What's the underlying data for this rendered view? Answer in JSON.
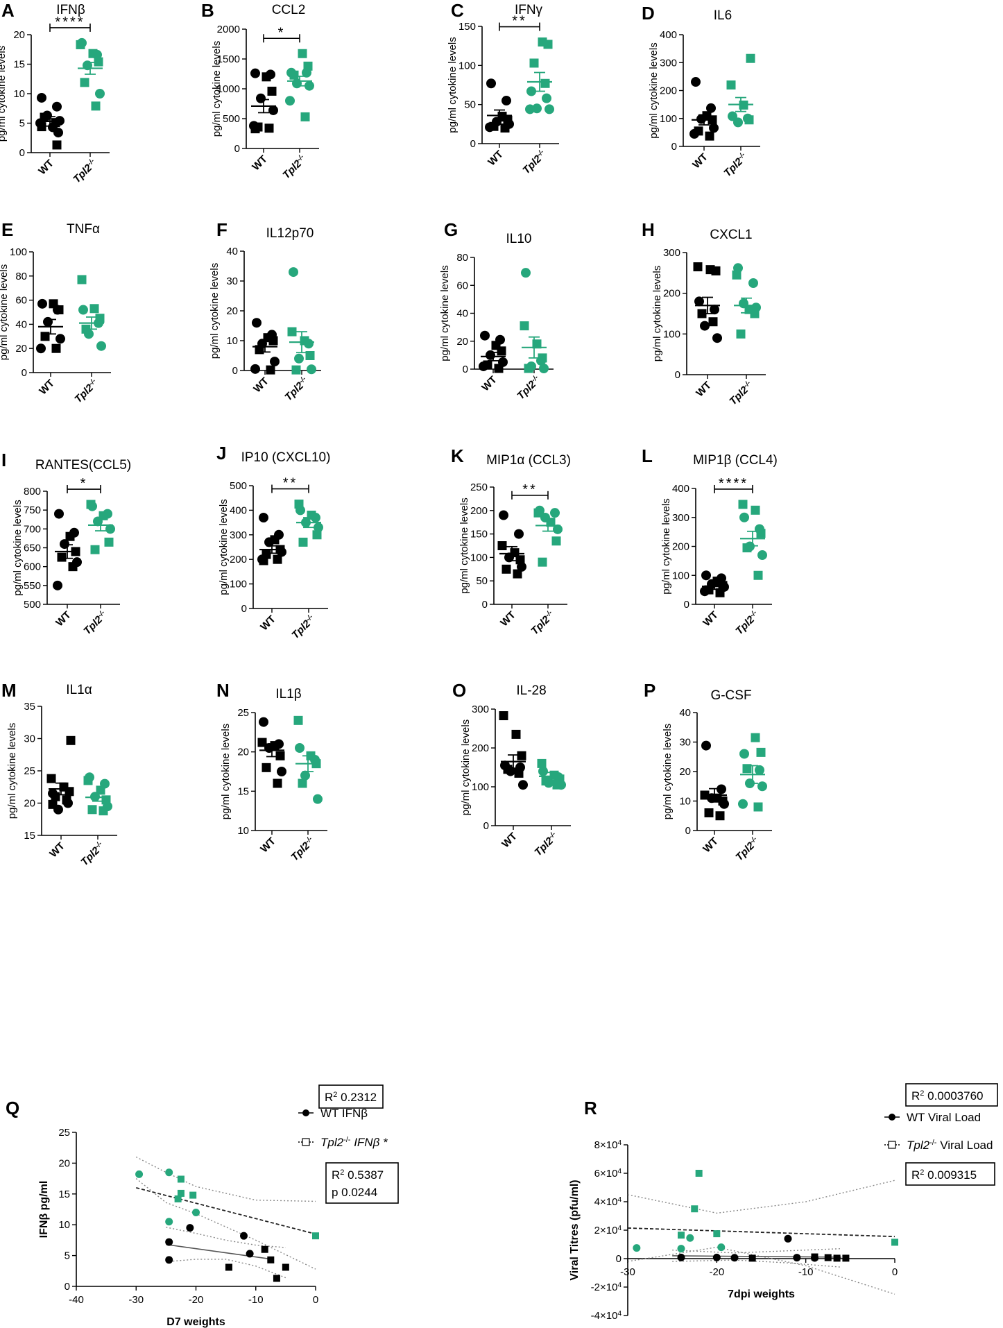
{
  "colors": {
    "wt": "#000000",
    "ko": "#26a77c",
    "axis": "#000000",
    "ci": "#888888"
  },
  "common": {
    "ylabel": "pg/ml cytokine levels",
    "categories": [
      "WT",
      "Tpl2",
      "-/-"
    ]
  },
  "chart_data": [
    {
      "type": "scatter",
      "id": "A",
      "label": "A",
      "title": "IFNβ",
      "ylim": [
        0,
        20
      ],
      "yticks": [
        0,
        5,
        10,
        15,
        20
      ],
      "sig": "****",
      "wt": {
        "mean": 5.3,
        "sem": 0.8,
        "circles": [
          9.3,
          7.8,
          6.3,
          5.4,
          5.0,
          4.3,
          3.4
        ],
        "squares": [
          6.0,
          5.1,
          4.4,
          1.3
        ]
      },
      "ko": {
        "mean": 14.3,
        "sem": 1.0,
        "circles": [
          18.6,
          16.6,
          14.8,
          10.0
        ],
        "squares": [
          18.3,
          16.8,
          15.4,
          11.9,
          7.9
        ]
      }
    },
    {
      "type": "scatter",
      "id": "B",
      "label": "B",
      "title": "CCL2",
      "ylim": [
        0,
        2000
      ],
      "yticks": [
        0,
        500,
        1000,
        1500,
        2000
      ],
      "sig": "*",
      "wt": {
        "mean": 710,
        "sem": 110,
        "circles": [
          1260,
          1240,
          840,
          640,
          380
        ],
        "squares": [
          1200,
          960,
          360,
          340,
          330
        ]
      },
      "ko": {
        "mean": 1130,
        "sem": 80,
        "circles": [
          1270,
          1270,
          1090,
          1050,
          800
        ],
        "squares": [
          1590,
          1380,
          1230,
          530
        ]
      }
    },
    {
      "type": "scatter",
      "id": "C",
      "label": "C",
      "title": "IFNγ",
      "ylim": [
        0,
        150
      ],
      "yticks": [
        0,
        50,
        100,
        150
      ],
      "sig": "**",
      "wt": {
        "mean": 36,
        "sem": 7,
        "circles": [
          77,
          55,
          28,
          25,
          21
        ],
        "squares": [
          35,
          30,
          22,
          20
        ]
      },
      "ko": {
        "mean": 79,
        "sem": 12,
        "circles": [
          67,
          58,
          45,
          44,
          44
        ],
        "squares": [
          130,
          127,
          103,
          77
        ]
      }
    },
    {
      "type": "scatter",
      "id": "D",
      "label": "D",
      "title": "IL6",
      "ylim": [
        0,
        400
      ],
      "yticks": [
        0,
        100,
        200,
        300,
        400
      ],
      "sig": "",
      "wt": {
        "mean": 95,
        "sem": 18,
        "circles": [
          231,
          137,
          98,
          66,
          45
        ],
        "squares": [
          110,
          95,
          55,
          37
        ]
      },
      "ko": {
        "mean": 150,
        "sem": 25,
        "circles": [
          108,
          100,
          86
        ],
        "squares": [
          315,
          220,
          148,
          95
        ]
      }
    },
    {
      "type": "scatter",
      "id": "E",
      "label": "E",
      "title": "TNFα",
      "ylim": [
        0,
        100
      ],
      "yticks": [
        0,
        20,
        40,
        60,
        80,
        100
      ],
      "sig": "",
      "wt": {
        "mean": 38,
        "sem": 6,
        "circles": [
          57,
          52,
          42,
          28,
          20
        ],
        "squares": [
          57,
          52,
          30,
          20
        ]
      },
      "ko": {
        "mean": 41,
        "sem": 5,
        "circles": [
          52,
          41,
          32,
          22
        ],
        "squares": [
          77,
          53,
          45,
          36
        ]
      }
    },
    {
      "type": "scatter",
      "id": "F",
      "label": "F",
      "title": "IL12p70",
      "ylim": [
        0,
        40
      ],
      "yticks": [
        0,
        10,
        20,
        30,
        40
      ],
      "sig": "",
      "wt": {
        "mean": 8.0,
        "sem": 1.8,
        "circles": [
          16,
          12,
          9,
          3,
          0.5
        ],
        "squares": [
          11,
          10,
          7,
          0.2
        ]
      },
      "ko": {
        "mean": 9.5,
        "sem": 3.5,
        "circles": [
          33,
          9,
          4,
          0.4
        ],
        "squares": [
          13,
          10,
          5,
          0.2
        ]
      }
    },
    {
      "type": "scatter",
      "id": "G",
      "label": "G",
      "title": "IL10",
      "ylim": [
        0,
        80
      ],
      "yticks": [
        0,
        20,
        40,
        60,
        80
      ],
      "sig": "",
      "wt": {
        "mean": 9,
        "sem": 3,
        "circles": [
          24,
          21,
          10,
          5,
          2
        ],
        "squares": [
          17,
          13,
          3,
          0.5
        ]
      },
      "ko": {
        "mean": 15.5,
        "sem": 7.5,
        "circles": [
          69,
          6,
          2,
          0.5
        ],
        "squares": [
          31,
          18,
          8,
          0.5
        ]
      }
    },
    {
      "type": "scatter",
      "id": "H",
      "label": "H",
      "title": "CXCL1",
      "ylim": [
        0,
        300
      ],
      "yticks": [
        0,
        100,
        200,
        300
      ],
      "sig": "",
      "wt": {
        "mean": 170,
        "sem": 20,
        "circles": [
          180,
          160,
          120,
          90
        ],
        "squares": [
          265,
          258,
          255,
          150,
          130
        ]
      },
      "ko": {
        "mean": 170,
        "sem": 18,
        "circles": [
          262,
          225,
          175,
          165
        ],
        "squares": [
          245,
          160,
          150,
          100
        ]
      }
    },
    {
      "type": "scatter",
      "id": "I",
      "label": "I",
      "title": "RANTES(CCL5)",
      "ylim": [
        500,
        800
      ],
      "yticks": [
        500,
        550,
        600,
        650,
        700,
        750,
        800
      ],
      "sig": "*",
      "wt": {
        "mean": 640,
        "sem": 18,
        "circles": [
          740,
          690,
          660,
          612,
          550
        ],
        "squares": [
          680,
          640,
          625,
          600
        ]
      },
      "ko": {
        "mean": 710,
        "sem": 15,
        "circles": [
          760,
          740,
          720,
          700
        ],
        "squares": [
          765,
          735,
          665,
          645
        ]
      }
    },
    {
      "type": "scatter",
      "id": "J",
      "label": "J",
      "title": "IP10 (CXCL10)",
      "ylim": [
        0,
        500
      ],
      "yticks": [
        0,
        100,
        200,
        300,
        400,
        500
      ],
      "sig": "**",
      "wt": {
        "mean": 240,
        "sem": 15,
        "circles": [
          370,
          300,
          270,
          230,
          200
        ],
        "squares": [
          280,
          240,
          220,
          200,
          195
        ]
      },
      "ko": {
        "mean": 350,
        "sem": 20,
        "circles": [
          400,
          370,
          350,
          330
        ],
        "squares": [
          425,
          380,
          300,
          270
        ]
      }
    },
    {
      "type": "scatter",
      "id": "K",
      "label": "K",
      "title": "MIP1α (CCL3)",
      "ylim": [
        0,
        250
      ],
      "yticks": [
        0,
        50,
        100,
        150,
        200,
        250
      ],
      "sig": "**",
      "wt": {
        "mean": 108,
        "sem": 15,
        "circles": [
          190,
          150,
          100,
          80
        ],
        "squares": [
          125,
          110,
          95,
          75,
          65
        ]
      },
      "ko": {
        "mean": 168,
        "sem": 12,
        "circles": [
          200,
          195,
          185,
          160
        ],
        "squares": [
          195,
          175,
          135,
          90
        ]
      }
    },
    {
      "type": "scatter",
      "id": "L",
      "label": "L",
      "title": "MIP1β (CCL4)",
      "ylim": [
        0,
        400
      ],
      "yticks": [
        0,
        100,
        200,
        300,
        400
      ],
      "sig": "****",
      "wt": {
        "mean": 62,
        "sem": 10,
        "circles": [
          100,
          90,
          70,
          60,
          45
        ],
        "squares": [
          80,
          65,
          50,
          40
        ]
      },
      "ko": {
        "mean": 227,
        "sem": 25,
        "circles": [
          300,
          260,
          200,
          170
        ],
        "squares": [
          345,
          325,
          245,
          195,
          100
        ]
      }
    },
    {
      "type": "scatter",
      "id": "M",
      "label": "M",
      "title": "IL1α",
      "ylim": [
        15,
        35
      ],
      "yticks": [
        15,
        20,
        25,
        30,
        35
      ],
      "sig": "",
      "wt": {
        "mean": 22.2,
        "sem": 0.9,
        "circles": [
          21.5,
          20,
          19
        ],
        "squares": [
          29.7,
          23.8,
          22.5,
          21.8,
          21,
          20.5,
          19.8
        ]
      },
      "ko": {
        "mean": 20.9,
        "sem": 0.6,
        "circles": [
          24,
          23,
          21,
          19.5
        ],
        "squares": [
          23.5,
          22,
          20.5,
          19,
          18.8
        ]
      }
    },
    {
      "type": "scatter",
      "id": "N",
      "label": "N",
      "title": "IL1β",
      "ylim": [
        10,
        25
      ],
      "yticks": [
        10,
        15,
        20,
        25
      ],
      "sig": "",
      "wt": {
        "mean": 20.2,
        "sem": 0.8,
        "circles": [
          23.8,
          21,
          20.5,
          17.5
        ],
        "squares": [
          21.2,
          20.8,
          19.5,
          18,
          16
        ]
      },
      "ko": {
        "mean": 18.5,
        "sem": 1.0,
        "circles": [
          20.5,
          19,
          17,
          14
        ],
        "squares": [
          24,
          19.5,
          18.5,
          16
        ]
      }
    },
    {
      "type": "scatter",
      "id": "O",
      "label": "O",
      "title": "IL-28",
      "ylim": [
        0,
        300
      ],
      "yticks": [
        0,
        100,
        200,
        300
      ],
      "sig": "",
      "wt": {
        "mean": 165,
        "sem": 17,
        "circles": [
          155,
          150,
          140,
          105
        ],
        "squares": [
          283,
          235,
          180,
          145,
          135
        ]
      },
      "ko": {
        "mean": 127,
        "sem": 10,
        "circles": [
          140,
          125,
          110,
          105
        ],
        "squares": [
          160,
          130,
          120,
          115,
          105
        ]
      }
    },
    {
      "type": "scatter",
      "id": "P",
      "label": "P",
      "title": "G-CSF",
      "ylim": [
        0,
        40
      ],
      "yticks": [
        0,
        10,
        20,
        30,
        40
      ],
      "sig": "",
      "wt": {
        "mean": 12,
        "sem": 2.2,
        "circles": [
          28.8,
          14,
          11,
          9
        ],
        "squares": [
          12,
          11,
          10,
          6,
          5
        ]
      },
      "ko": {
        "mean": 19,
        "sem": 3,
        "circles": [
          26,
          20.5,
          16,
          15,
          9
        ],
        "squares": [
          31.5,
          26.5,
          21,
          8
        ]
      }
    },
    {
      "type": "regression",
      "id": "Q",
      "label": "Q",
      "xlabel": "D7 weights",
      "ylabel": "IFNβ pg/ml",
      "xlim": [
        -40,
        0
      ],
      "ylim": [
        0,
        25
      ],
      "xticks": [
        -40,
        -30,
        -20,
        -10,
        0
      ],
      "yticks": [
        0,
        5,
        10,
        15,
        20,
        25
      ],
      "legend": [
        {
          "name": "WT IFNβ"
        },
        {
          "name": "Tpl2",
          "sup": "-/-",
          "suffix": " IFNβ *"
        }
      ],
      "r2_wt": {
        "label": "R",
        "sup": "2",
        "value": " 0.2312"
      },
      "r2_ko": {
        "label": "R",
        "sup": "2",
        "value": " 0.5387",
        "p": "p 0.0244"
      },
      "wt_circles": [
        [
          -24.5,
          7.2
        ],
        [
          -24.5,
          4.3
        ],
        [
          -21,
          9.5
        ],
        [
          -12,
          8.2
        ],
        [
          -11,
          5.3
        ]
      ],
      "wt_squares": [
        [
          -14.5,
          3.1
        ],
        [
          -8.5,
          6.0
        ],
        [
          -7.5,
          4.3
        ],
        [
          -6.5,
          1.3
        ],
        [
          -5,
          3.1
        ]
      ],
      "ko_circles": [
        [
          -29.5,
          18.2
        ],
        [
          -24.5,
          18.5
        ],
        [
          -24.5,
          10.5
        ],
        [
          -20,
          12.0
        ]
      ],
      "ko_squares": [
        [
          -22.5,
          17.4
        ],
        [
          -22.5,
          15.1
        ],
        [
          -23,
          14.2
        ],
        [
          -20.5,
          14.8
        ],
        [
          0,
          8.2
        ]
      ],
      "wt_line": [
        [
          -25,
          6.8
        ],
        [
          -8,
          4.5
        ]
      ],
      "ko_line": [
        [
          -30,
          16.0
        ],
        [
          0,
          8.5
        ]
      ],
      "wt_ci_upper": [
        [
          -25,
          9.6
        ],
        [
          -20,
          8.6
        ],
        [
          -15,
          7.5
        ],
        [
          -10,
          6.7
        ],
        [
          -5,
          6.3
        ]
      ],
      "wt_ci_lower": [
        [
          -25,
          4.0
        ],
        [
          -20,
          4.4
        ],
        [
          -15,
          4.4
        ],
        [
          -10,
          3.3
        ],
        [
          -5,
          1.4
        ]
      ],
      "ko_ci_upper": [
        [
          -30,
          21.0
        ],
        [
          -25,
          18.5
        ],
        [
          -20,
          16.2
        ],
        [
          -10,
          14.0
        ],
        [
          0,
          13.8
        ]
      ],
      "ko_ci_lower": [
        [
          -30,
          17.5
        ],
        [
          -25,
          13.6
        ],
        [
          -20,
          11.8
        ],
        [
          -10,
          7.5
        ],
        [
          0,
          2.8
        ]
      ]
    },
    {
      "type": "regression",
      "id": "R",
      "label": "R",
      "xlabel": "7dpi weights",
      "ylabel": "Viral Titres (pfu/ml)",
      "xlim": [
        -30,
        0
      ],
      "ylim": [
        -40000,
        80000
      ],
      "yticks": [
        -40000,
        -20000,
        0,
        20000,
        40000,
        60000,
        80000
      ],
      "ytick_labels": [
        {
          "m": "-4×10",
          "e": "4"
        },
        {
          "m": "-2×10",
          "e": "4"
        },
        {
          "m": "0",
          "e": ""
        },
        {
          "m": "2×10",
          "e": "4"
        },
        {
          "m": "4×10",
          "e": "4"
        },
        {
          "m": "6×10",
          "e": "4"
        },
        {
          "m": "8×10",
          "e": "4"
        }
      ],
      "xticks": [
        -30,
        -20,
        -10,
        0
      ],
      "legend": [
        {
          "name": "WT Viral Load"
        },
        {
          "name": "Tpl2",
          "sup": "-/-",
          "suffix": " Viral Load"
        }
      ],
      "r2_wt": {
        "label": "R",
        "sup": "2",
        "value": " 0.0003760"
      },
      "r2_ko": {
        "label": "R",
        "sup": "2",
        "value": " 0.009315"
      },
      "wt_circles": [
        [
          -24,
          800
        ],
        [
          -20,
          800
        ],
        [
          -18,
          600
        ],
        [
          -12,
          14000
        ],
        [
          -11,
          700
        ],
        [
          -9,
          500
        ]
      ],
      "wt_squares": [
        [
          -16,
          300
        ],
        [
          -9,
          1200
        ],
        [
          -7.5,
          700
        ],
        [
          -6.5,
          300
        ],
        [
          -5.5,
          300
        ]
      ],
      "ko_circles": [
        [
          -29,
          7500
        ],
        [
          -24,
          7000
        ],
        [
          -23,
          14500
        ],
        [
          -19.5,
          8000
        ]
      ],
      "ko_squares": [
        [
          -22,
          60000
        ],
        [
          -22.5,
          35000
        ],
        [
          -24,
          16500
        ],
        [
          -20,
          17500
        ],
        [
          0,
          11500
        ]
      ],
      "wt_line": [
        [
          -25,
          2000
        ],
        [
          -6,
          1000
        ]
      ],
      "ko_line": [
        [
          -30,
          21500
        ],
        [
          0,
          15500
        ]
      ],
      "wt_ci_upper": [
        [
          -25,
          6000
        ],
        [
          -18,
          4000
        ],
        [
          -12,
          5500
        ],
        [
          -6,
          7000
        ]
      ],
      "wt_ci_lower": [
        [
          -25,
          -2000
        ],
        [
          -18,
          -1000
        ],
        [
          -12,
          -3000
        ],
        [
          -6,
          -6000
        ]
      ],
      "ko_ci_upper": [
        [
          -30,
          45000
        ],
        [
          -20,
          32000
        ],
        [
          -10,
          40000
        ],
        [
          0,
          55000
        ]
      ],
      "ko_ci_lower": [
        [
          -30,
          -2000
        ],
        [
          -20,
          8000
        ],
        [
          -10,
          -5000
        ],
        [
          0,
          -25000
        ]
      ]
    }
  ]
}
